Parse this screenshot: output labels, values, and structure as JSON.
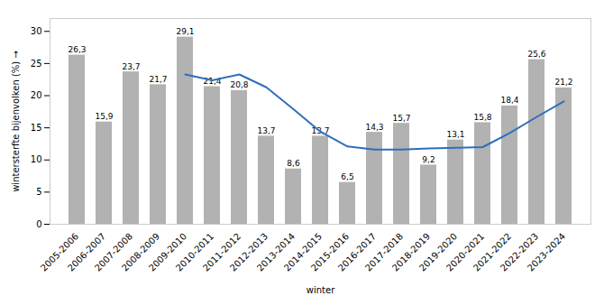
{
  "chart_data": {
    "type": "bar",
    "xlabel": "winter",
    "ylabel": "wintersterfte bijenvolken (%)",
    "categories": [
      "2005-2006",
      "2006-2007",
      "2007-2008",
      "2008-2009",
      "2009-2010",
      "2010-2011",
      "2011-2012",
      "2012-2013",
      "2013-2014",
      "2014-2015",
      "2015-2016",
      "2016-2017",
      "2017-2018",
      "2018-2019",
      "2019-2020",
      "2020-2021",
      "2021-2022",
      "2022-2023",
      "2023-2024"
    ],
    "series": [
      {
        "type": "bar",
        "color": "#b2b2b2",
        "data_labels": true,
        "values": [
          26.3,
          15.9,
          23.7,
          21.7,
          29.1,
          21.4,
          20.8,
          13.7,
          8.6,
          13.7,
          6.5,
          14.3,
          15.7,
          9.2,
          13.1,
          15.8,
          18.4,
          25.6,
          21.2
        ],
        "value_labels": [
          "26,3",
          "15,9",
          "23,7",
          "21,7",
          "29,1",
          "21,4",
          "20,8",
          "13,7",
          "8,6",
          "13,7",
          "6,5",
          "14,3",
          "15,7",
          "9,2",
          "13,1",
          "15,8",
          "18,4",
          "25,6",
          "21,2"
        ]
      },
      {
        "type": "line",
        "color": "#2e6fbd",
        "values": [
          null,
          null,
          null,
          null,
          23.3,
          22.4,
          23.3,
          21.3,
          17.9,
          14.4,
          12.1,
          11.6,
          11.6,
          11.8,
          11.9,
          12.0,
          14.2,
          16.7,
          19.1
        ]
      }
    ],
    "ylim": [
      0,
      32
    ],
    "yticks": [
      0,
      5,
      10,
      15,
      20,
      25,
      30
    ],
    "grid": false
  }
}
